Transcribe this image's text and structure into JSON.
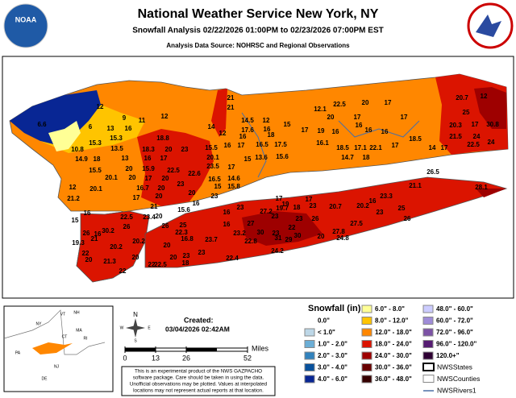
{
  "header": {
    "title": "National Weather Service New York, NY",
    "subtitle": "Snowfall Analysis 02/22/2026 01:00PM to 02/23/2026 07:00PM EST",
    "source": "Analysis Data Source: NOHRSC and Regional Observations",
    "logo_left": "NOAA"
  },
  "snowfall_reports": [
    21,
    21,
    12.1,
    22.5,
    20,
    17,
    20.7,
    12,
    12,
    12,
    9,
    11,
    17,
    25,
    14.5,
    12,
    20,
    17,
    6,
    13,
    16,
    14,
    17.6,
    16,
    15,
    16,
    20.3,
    17,
    30.8,
    6.6,
    19,
    16,
    16,
    16,
    24,
    12,
    16,
    18,
    17,
    21.5,
    15.3,
    15.3,
    18.8,
    15.5,
    16,
    17,
    16.5,
    17.5,
    16.1,
    18.5,
    17.1,
    22.1,
    17,
    18.5,
    14,
    17,
    22.5,
    24,
    10.8,
    13.5,
    18.3,
    20,
    23,
    14.7,
    18,
    14.9,
    18,
    13,
    16,
    17,
    20.1,
    15,
    13.6,
    15.6,
    15.5,
    20,
    15.9,
    22.5,
    23.5,
    17,
    20.1,
    20,
    17,
    22.6,
    20,
    16.5,
    14.6,
    26.5,
    12,
    20.1,
    16.7,
    20,
    23,
    20,
    15,
    15.8,
    21.1,
    28.1,
    21.2,
    17,
    20,
    23,
    16,
    17,
    19,
    17,
    23.3,
    16,
    25,
    16,
    22.5,
    21,
    20,
    15.6,
    16,
    23,
    27.2,
    19.7,
    18,
    23,
    20.7,
    20.2,
    23,
    26,
    15,
    23.4,
    26,
    25,
    16,
    27,
    23,
    23,
    26,
    27.5,
    26,
    16,
    30.2,
    26,
    22.3,
    30,
    23,
    22,
    27.8,
    24.8,
    19.3,
    21,
    20.2,
    16.8,
    23.7,
    23.2,
    31,
    29,
    30,
    20,
    22,
    20.2,
    20,
    22.8,
    20,
    21.3,
    20,
    22,
    22.5,
    20,
    23,
    23,
    22.4,
    24.2,
    22,
    18
  ],
  "legend": {
    "title": "Snowfall (in)",
    "entries": [
      {
        "label": "0.0\"",
        "color": "#ffffff"
      },
      {
        "label": "< 1.0\"",
        "color": "#bdd7e7"
      },
      {
        "label": "1.0\" - 2.0\"",
        "color": "#6baed6"
      },
      {
        "label": "2.0\" - 3.0\"",
        "color": "#3182bd"
      },
      {
        "label": "3.0\" - 4.0\"",
        "color": "#08519c"
      },
      {
        "label": "4.0\" - 6.0\"",
        "color": "#082694"
      },
      {
        "label": "6.0\" - 8.0\"",
        "color": "#ffff96"
      },
      {
        "label": "8.0\" - 12.0\"",
        "color": "#ffc400"
      },
      {
        "label": "12.0\" - 18.0\"",
        "color": "#ff8700"
      },
      {
        "label": "18.0\" - 24.0\"",
        "color": "#db1400"
      },
      {
        "label": "24.0\" - 30.0\"",
        "color": "#9e0000"
      },
      {
        "label": "30.0\" - 36.0\"",
        "color": "#690000"
      },
      {
        "label": "36.0\" - 48.0\"",
        "color": "#360000"
      },
      {
        "label": "48.0\" - 60.0\"",
        "color": "#ccccff"
      },
      {
        "label": "60.0\" - 72.0\"",
        "color": "#9f8cd8"
      },
      {
        "label": "72.0\" - 96.0\"",
        "color": "#7c52a5"
      },
      {
        "label": "96.0\" - 120.0\"",
        "color": "#561c72"
      },
      {
        "label": "120.0+\"",
        "color": "#2e0033"
      }
    ],
    "overlays": [
      "NWSStates",
      "NWSCounties",
      "NWSRivers1"
    ]
  },
  "created": {
    "label": "Created:",
    "timestamp": "03/04/2026 02:42AM"
  },
  "compass": [
    "N",
    "W",
    "E",
    "S"
  ],
  "scale": {
    "ticks": [
      0,
      13,
      26,
      52
    ],
    "unit": "Miles"
  },
  "disclaimer": [
    "This is an experimental product of the NWS GAZPACHO",
    "software package. Care should be taken in using the data.",
    "Unofficial observations may be plotted. Values at interpolated",
    "locations may not represent actual reports at that location."
  ],
  "inset_labels": [
    "NY",
    "VT",
    "NH",
    "MA",
    "CT",
    "RI",
    "PA",
    "NJ",
    "DE"
  ]
}
